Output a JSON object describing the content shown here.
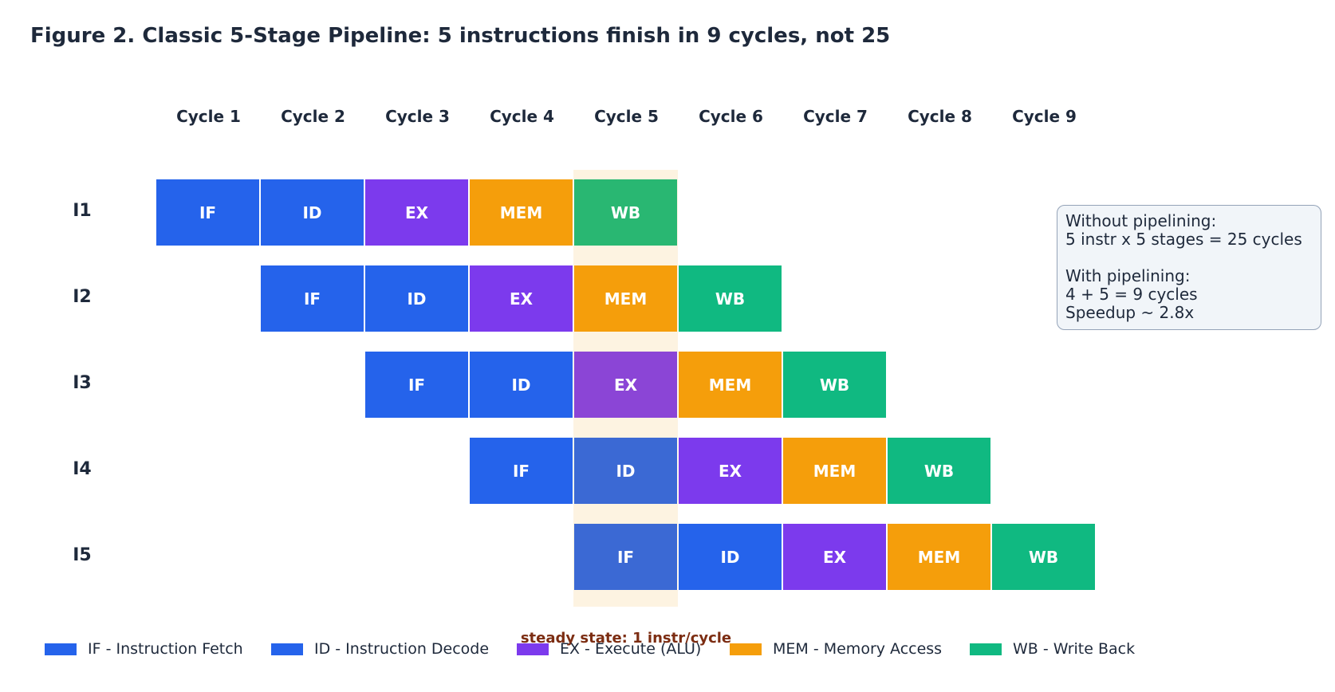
{
  "title": "Figure 2. Classic 5-Stage Pipeline: 5 instructions finish in 9 cycles, not 25",
  "cycles": [
    "Cycle 1",
    "Cycle 2",
    "Cycle 3",
    "Cycle 4",
    "Cycle 5",
    "Cycle 6",
    "Cycle 7",
    "Cycle 8",
    "Cycle 9"
  ],
  "instructions": [
    {
      "label": "I1",
      "start_cycle": 1,
      "stages": [
        "IF",
        "ID",
        "EX",
        "MEM",
        "WB"
      ]
    },
    {
      "label": "I2",
      "start_cycle": 2,
      "stages": [
        "IF",
        "ID",
        "EX",
        "MEM",
        "WB"
      ]
    },
    {
      "label": "I3",
      "start_cycle": 3,
      "stages": [
        "IF",
        "ID",
        "EX",
        "MEM",
        "WB"
      ]
    },
    {
      "label": "I4",
      "start_cycle": 4,
      "stages": [
        "IF",
        "ID",
        "EX",
        "MEM",
        "WB"
      ]
    },
    {
      "label": "I5",
      "start_cycle": 5,
      "stages": [
        "IF",
        "ID",
        "EX",
        "MEM",
        "WB"
      ]
    }
  ],
  "stage_colors": {
    "IF": "#2563eb",
    "ID": "#2563eb",
    "EX": "#7c3aed",
    "MEM": "#f59e0b",
    "WB": "#10b981"
  },
  "highlight": {
    "cycle": 5,
    "band_color": "#fdf3e1",
    "tinted_colors": {
      "IF": "#3b69d4",
      "ID": "#3b69d4",
      "EX": "#8b45d6",
      "MEM": "#f59e0b",
      "WB": "#29b772"
    },
    "label": "steady state: 1 instr/cycle"
  },
  "note": {
    "lines": [
      "Without pipelining:",
      "5 instr x 5 stages = 25 cycles",
      "",
      "With pipelining:",
      "4 + 5 = 9 cycles",
      "Speedup ~ 2.8x"
    ]
  },
  "legend": [
    {
      "label": "IF - Instruction Fetch",
      "color": "#2563eb"
    },
    {
      "label": "ID - Instruction Decode",
      "color": "#2563eb"
    },
    {
      "label": "EX - Execute (ALU)",
      "color": "#7c3aed"
    },
    {
      "label": "MEM - Memory Access",
      "color": "#f59e0b"
    },
    {
      "label": "WB - Write Back",
      "color": "#10b981"
    }
  ]
}
